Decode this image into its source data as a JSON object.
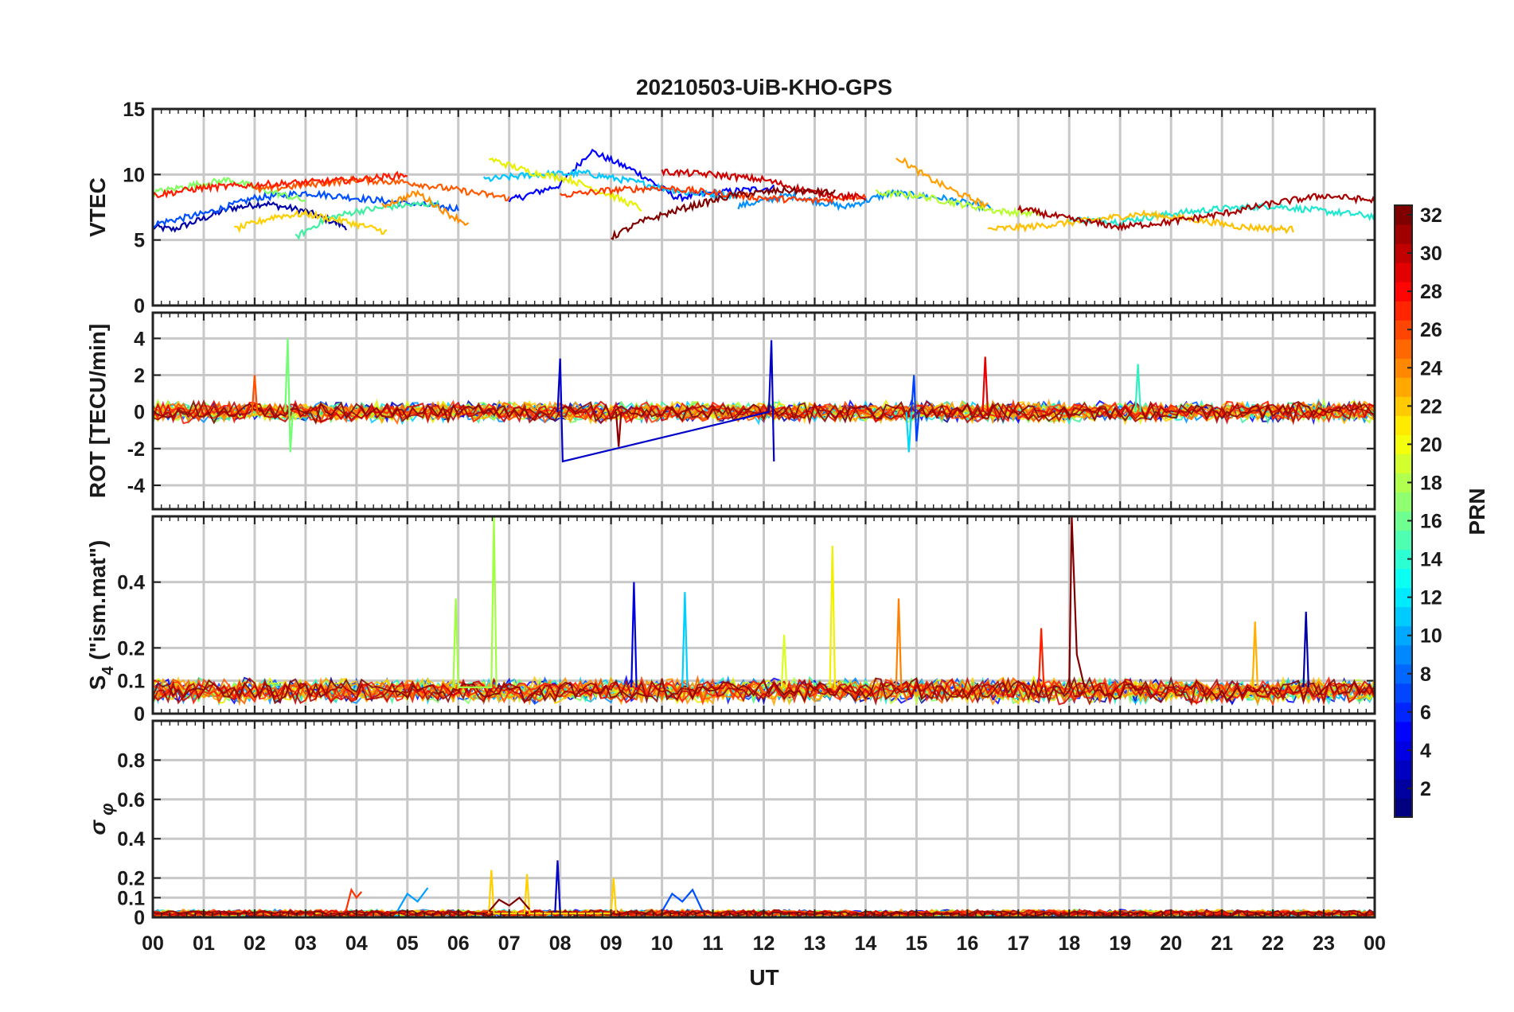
{
  "chart_data": {
    "type": "line",
    "title": "20210503-UiB-KHO-GPS",
    "xlabel": "UT",
    "x_ticks": [
      "00",
      "01",
      "02",
      "03",
      "04",
      "05",
      "06",
      "07",
      "08",
      "09",
      "10",
      "11",
      "12",
      "13",
      "14",
      "15",
      "16",
      "17",
      "18",
      "19",
      "20",
      "21",
      "22",
      "23",
      "00"
    ],
    "xlim": [
      0,
      24
    ],
    "grid": true,
    "colorbar": {
      "label": "PRN",
      "colormap": "jet",
      "range": [
        1,
        32
      ],
      "ticks": [
        "2",
        "4",
        "6",
        "8",
        "10",
        "12",
        "14",
        "16",
        "18",
        "20",
        "22",
        "24",
        "26",
        "28",
        "30",
        "32"
      ]
    },
    "panels": [
      {
        "id": "vtec",
        "ylabel": "VTEC",
        "ylim": [
          0,
          15
        ],
        "yticks": [
          0,
          5,
          10,
          15
        ],
        "ytick_labels": [
          "0",
          "5",
          "10",
          "15"
        ],
        "series": [
          {
            "prn": 1,
            "color": "#0000a8",
            "x": [
              0.0,
              0.4,
              0.9,
              1.5,
              2.2,
              3.0,
              3.8
            ],
            "y": [
              6.0,
              5.8,
              6.5,
              7.4,
              7.8,
              7.2,
              6.0
            ]
          },
          {
            "prn": 3,
            "color": "#0000ff",
            "x": [
              7.0,
              8.0,
              8.6,
              9.5,
              10.3,
              11.0,
              12.2
            ],
            "y": [
              8.0,
              9.2,
              11.8,
              10.2,
              8.2,
              8.6,
              9.0
            ]
          },
          {
            "prn": 5,
            "color": "#0050ff",
            "x": [
              0.0,
              1.0,
              2.0,
              3.0,
              4.5,
              6.0
            ],
            "y": [
              6.2,
              7.0,
              8.2,
              8.6,
              8.0,
              7.4
            ]
          },
          {
            "prn": 7,
            "color": "#0090ff",
            "x": [
              11.5,
              12.5,
              13.6,
              14.5,
              15.5,
              16.5
            ],
            "y": [
              7.6,
              8.4,
              7.5,
              8.6,
              8.2,
              7.4
            ]
          },
          {
            "prn": 9,
            "color": "#00c8ff",
            "x": [
              6.5,
              7.5,
              8.5,
              9.5,
              10.5,
              11.5
            ],
            "y": [
              9.6,
              10.0,
              10.1,
              9.4,
              8.6,
              8.4
            ]
          },
          {
            "prn": 11,
            "color": "#20e8d0",
            "x": [
              18.0,
              19.0,
              20.0,
              21.0,
              22.0,
              23.0,
              24.0
            ],
            "y": [
              6.6,
              6.4,
              7.0,
              7.4,
              7.6,
              7.2,
              6.8
            ]
          },
          {
            "prn": 13,
            "color": "#40f0a0",
            "x": [
              2.8,
              3.4,
              4.0,
              4.8,
              5.6
            ],
            "y": [
              5.2,
              6.6,
              7.2,
              7.6,
              7.8
            ]
          },
          {
            "prn": 15,
            "color": "#80ff60",
            "x": [
              0.0,
              0.8,
              1.5,
              2.2,
              3.0
            ],
            "y": [
              8.6,
              9.2,
              9.6,
              8.8,
              8.0
            ]
          },
          {
            "prn": 17,
            "color": "#b8ff30",
            "x": [
              14.2,
              15.0,
              15.8,
              16.6,
              17.4
            ],
            "y": [
              8.6,
              8.4,
              7.8,
              7.2,
              7.0
            ]
          },
          {
            "prn": 19,
            "color": "#e8f000",
            "x": [
              6.6,
              7.4,
              8.2,
              9.0,
              9.6
            ],
            "y": [
              11.2,
              10.2,
              9.6,
              8.4,
              7.4
            ]
          },
          {
            "prn": 21,
            "color": "#ffd000",
            "x": [
              1.6,
              2.4,
              3.0,
              3.8,
              4.6
            ],
            "y": [
              5.8,
              6.8,
              7.0,
              6.4,
              5.6
            ]
          },
          {
            "prn": 22,
            "color": "#ffc000",
            "x": [
              16.4,
              17.2,
              18.2,
              19.4,
              20.4,
              21.4,
              22.4
            ],
            "y": [
              5.8,
              6.0,
              6.4,
              7.0,
              6.6,
              6.0,
              5.8
            ]
          },
          {
            "prn": 23,
            "color": "#ffa000",
            "x": [
              14.6,
              15.2,
              15.8,
              16.4
            ],
            "y": [
              11.4,
              9.8,
              8.6,
              7.6
            ]
          },
          {
            "prn": 24,
            "color": "#ff8c00",
            "x": [
              4.5,
              5.2,
              5.8,
              6.2
            ],
            "y": [
              7.6,
              8.6,
              7.0,
              6.2
            ]
          },
          {
            "prn": 26,
            "color": "#ff5a00",
            "x": [
              2.0,
              3.0,
              4.0,
              5.0,
              6.0,
              7.0
            ],
            "y": [
              8.8,
              9.2,
              9.6,
              9.4,
              8.8,
              8.2
            ]
          },
          {
            "prn": 27,
            "color": "#ff3a00",
            "x": [
              8.0,
              9.0,
              10.0,
              11.0,
              12.0,
              13.0,
              14.0
            ],
            "y": [
              8.4,
              8.8,
              9.0,
              8.6,
              8.2,
              8.0,
              8.4
            ]
          },
          {
            "prn": 28,
            "color": "#ff1a00",
            "x": [
              0.0,
              1.0,
              2.0,
              3.0,
              4.0,
              5.0
            ],
            "y": [
              8.4,
              9.0,
              9.2,
              9.4,
              9.6,
              10.0
            ]
          },
          {
            "prn": 30,
            "color": "#d00000",
            "x": [
              10.0,
              11.0,
              12.0,
              13.0,
              14.0
            ],
            "y": [
              10.2,
              10.0,
              9.6,
              8.6,
              8.2
            ]
          },
          {
            "prn": 32,
            "color": "#800000",
            "x": [
              9.0,
              9.6,
              10.4,
              11.4,
              12.4,
              13.4
            ],
            "y": [
              5.2,
              6.4,
              7.4,
              8.4,
              8.8,
              8.6
            ]
          },
          {
            "prn": 31,
            "color": "#a80000",
            "x": [
              17.0,
              18.0,
              19.0,
              20.0,
              21.0,
              22.0,
              23.0,
              24.0
            ],
            "y": [
              7.4,
              6.6,
              6.0,
              6.4,
              7.0,
              7.8,
              8.4,
              8.0
            ]
          }
        ]
      },
      {
        "id": "rot",
        "ylabel": "ROT [TECU/min]",
        "ylim": [
          -5.3,
          5.4
        ],
        "yticks": [
          -4,
          -2,
          0,
          2,
          4
        ],
        "ytick_labels": [
          "-4",
          "-2",
          "0",
          "2",
          "4"
        ],
        "series": [
          {
            "prn": 2,
            "color": "#0000c8",
            "x": [
              7.95,
              8.0,
              8.05,
              12.1,
              12.15,
              12.2
            ],
            "y": [
              0.0,
              2.9,
              -2.7,
              0.0,
              3.9,
              -2.7
            ]
          },
          {
            "prn": 6,
            "color": "#0040ff",
            "x": [
              14.9,
              14.95,
              15.0,
              15.05
            ],
            "y": [
              0.0,
              2.0,
              -1.6,
              0.0
            ]
          },
          {
            "prn": 12,
            "color": "#00d8f8",
            "x": [
              14.8,
              14.85,
              14.9
            ],
            "y": [
              0.0,
              -2.2,
              0.0
            ]
          },
          {
            "prn": 14,
            "color": "#30f0c0",
            "x": [
              19.3,
              19.35,
              19.4
            ],
            "y": [
              0.0,
              2.6,
              0.0
            ]
          },
          {
            "prn": 16,
            "color": "#70ff70",
            "x": [
              2.6,
              2.65,
              2.7,
              2.75
            ],
            "y": [
              0.0,
              4.0,
              -2.2,
              0.0
            ]
          },
          {
            "prn": 26,
            "color": "#ff5000",
            "x": [
              1.95,
              2.0,
              2.05
            ],
            "y": [
              0.0,
              2.0,
              0.0
            ]
          },
          {
            "prn": 29,
            "color": "#e80000",
            "x": [
              16.3,
              16.35,
              16.4
            ],
            "y": [
              0.0,
              3.0,
              0.0
            ]
          },
          {
            "prn": 31,
            "color": "#900000",
            "x": [
              9.1,
              9.15,
              9.2
            ],
            "y": [
              0.0,
              -1.9,
              0.0
            ]
          }
        ]
      },
      {
        "id": "s4",
        "ylabel": "S4 (\"ism.mat\")",
        "ylim": [
          0,
          0.6
        ],
        "yticks": [
          0,
          0.1,
          0.2,
          0.4
        ],
        "ytick_labels": [
          "0",
          "0.1",
          "0.2",
          "0.4"
        ],
        "series": [
          {
            "prn": 1,
            "color": "#0000a8",
            "x": [
              22.6,
              22.65,
              22.7
            ],
            "y": [
              0.08,
              0.31,
              0.08
            ]
          },
          {
            "prn": 3,
            "color": "#0000e0",
            "x": [
              9.4,
              9.45,
              9.5
            ],
            "y": [
              0.08,
              0.4,
              0.08
            ]
          },
          {
            "prn": 11,
            "color": "#00d0ff",
            "x": [
              10.4,
              10.45,
              10.5
            ],
            "y": [
              0.08,
              0.37,
              0.08
            ]
          },
          {
            "prn": 17,
            "color": "#a0ff40",
            "x": [
              5.9,
              5.95,
              6.0,
              6.65,
              6.7,
              6.75
            ],
            "y": [
              0.08,
              0.35,
              0.08,
              0.08,
              0.6,
              0.08
            ]
          },
          {
            "prn": 19,
            "color": "#d8ff20",
            "x": [
              12.35,
              12.4,
              12.45
            ],
            "y": [
              0.08,
              0.24,
              0.08
            ]
          },
          {
            "prn": 20,
            "color": "#f0f000",
            "x": [
              13.3,
              13.35,
              13.4
            ],
            "y": [
              0.08,
              0.51,
              0.08
            ]
          },
          {
            "prn": 22,
            "color": "#ffb000",
            "x": [
              21.6,
              21.65,
              21.7
            ],
            "y": [
              0.08,
              0.28,
              0.08
            ]
          },
          {
            "prn": 24,
            "color": "#ff8000",
            "x": [
              14.6,
              14.65,
              14.7
            ],
            "y": [
              0.08,
              0.35,
              0.08
            ]
          },
          {
            "prn": 28,
            "color": "#ff2000",
            "x": [
              17.4,
              17.45,
              17.5
            ],
            "y": [
              0.08,
              0.26,
              0.08
            ]
          },
          {
            "prn": 32,
            "color": "#800000",
            "x": [
              18.0,
              18.05,
              18.15,
              18.3
            ],
            "y": [
              0.08,
              0.6,
              0.18,
              0.08
            ]
          }
        ]
      },
      {
        "id": "sigma_phi",
        "ylabel": "σ φ",
        "ylim": [
          0,
          1.0
        ],
        "yticks": [
          0,
          0.1,
          0.2,
          0.4,
          0.6,
          0.8
        ],
        "ytick_labels": [
          "0",
          "0.1",
          "0.2",
          "0.4",
          "0.6",
          "0.8"
        ],
        "series": [
          {
            "prn": 2,
            "color": "#0000c8",
            "x": [
              7.9,
              7.95,
              8.0
            ],
            "y": [
              0.02,
              0.29,
              0.02
            ]
          },
          {
            "prn": 5,
            "color": "#0050ff",
            "x": [
              10.0,
              10.2,
              10.4,
              10.6,
              10.8
            ],
            "y": [
              0.03,
              0.12,
              0.08,
              0.14,
              0.03
            ]
          },
          {
            "prn": 8,
            "color": "#00a0ff",
            "x": [
              4.8,
              5.0,
              5.2,
              5.4
            ],
            "y": [
              0.03,
              0.12,
              0.08,
              0.15
            ]
          },
          {
            "prn": 21,
            "color": "#ffd000",
            "x": [
              6.6,
              6.65,
              6.7,
              7.3,
              7.35,
              7.4,
              9.0,
              9.05,
              9.1
            ],
            "y": [
              0.02,
              0.24,
              0.02,
              0.02,
              0.22,
              0.02,
              0.02,
              0.2,
              0.02
            ]
          },
          {
            "prn": 27,
            "color": "#ff3000",
            "x": [
              3.8,
              3.9,
              4.0,
              4.1
            ],
            "y": [
              0.04,
              0.14,
              0.1,
              0.13
            ]
          },
          {
            "prn": 32,
            "color": "#800000",
            "x": [
              6.6,
              6.8,
              7.0,
              7.2,
              7.4
            ],
            "y": [
              0.03,
              0.09,
              0.06,
              0.1,
              0.04
            ]
          }
        ]
      }
    ]
  }
}
